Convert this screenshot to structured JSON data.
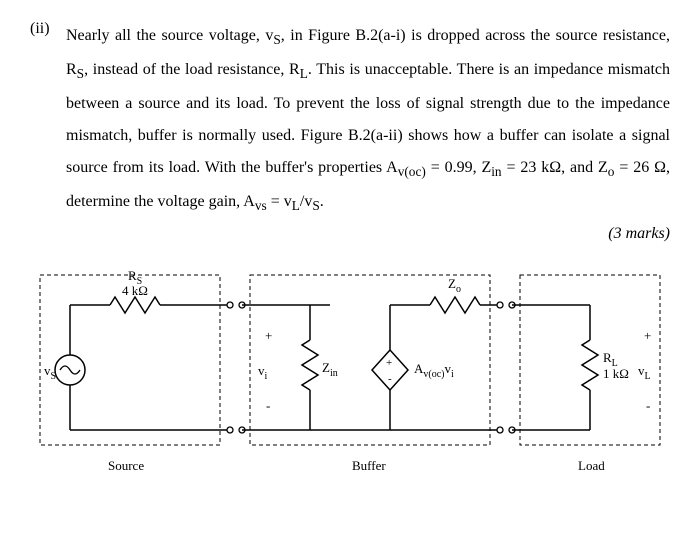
{
  "problem": {
    "number": "(ii)",
    "text": "Nearly all the source voltage, v<sub>S</sub>, in Figure B.2(a-i) is dropped across the source resistance, R<sub>S</sub>, instead of the load resistance, R<sub>L</sub>. This is unacceptable. There is an impedance mismatch between a source and its load. To prevent the loss of signal strength due to the impedance mismatch, buffer is normally used. Figure B.2(a-ii) shows how a buffer can isolate a signal source from its load. With the buffer's properties A<sub>v(oc)</sub> = 0.99, Z<sub>in</sub> = 23 kΩ, and Z<sub>o</sub> = 26 Ω, determine the voltage gain, A<sub>vs</sub> = v<sub>L</sub>/v<sub>S</sub>.",
    "marks": "(3 marks)"
  },
  "circuit": {
    "Rs_label": "R",
    "Rs_sub": "S",
    "Rs_value": "4 kΩ",
    "Zo_label": "Z",
    "Zo_sub": "o",
    "vs_label": "v",
    "vs_sub": "S",
    "vi_label": "v",
    "vi_sub": "i",
    "Zin_label": "Z",
    "Zin_sub": "in",
    "Avoc_label": "A",
    "Avoc_sub": "v(oc)",
    "Avoc_tail": "v",
    "Avoc_tailsub": "i",
    "RL_label": "R",
    "RL_sub": "L",
    "RL_value": "1 kΩ",
    "vL_label": "v",
    "vL_sub": "L",
    "plus": "+",
    "minus": "-",
    "box_source": "Source",
    "box_buffer": "Buffer",
    "box_load": "Load"
  }
}
